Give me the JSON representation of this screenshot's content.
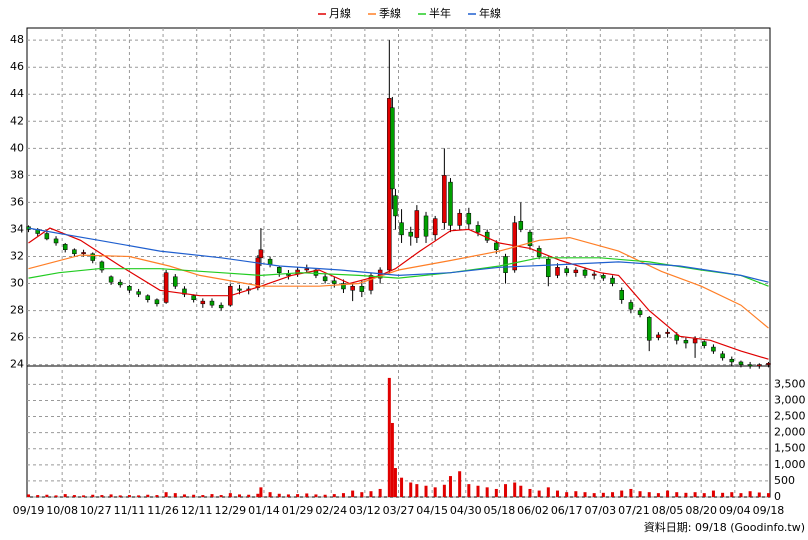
{
  "chart_data": {
    "type": "candlestick",
    "footer": "資料日期: 09/18 (Goodinfo.tw)",
    "xlim": [
      -0.5,
      242.5
    ],
    "xticks": [
      {
        "value": 0,
        "label": "09/19"
      },
      {
        "value": 11,
        "label": "10/08"
      },
      {
        "value": 22,
        "label": "10/27"
      },
      {
        "value": 33,
        "label": "11/11"
      },
      {
        "value": 44,
        "label": "11/26"
      },
      {
        "value": 55,
        "label": "12/11"
      },
      {
        "value": 66,
        "label": "12/29"
      },
      {
        "value": 77,
        "label": "01/14"
      },
      {
        "value": 88,
        "label": "01/29"
      },
      {
        "value": 99,
        "label": "02/24"
      },
      {
        "value": 110,
        "label": "03/12"
      },
      {
        "value": 121,
        "label": "03/27"
      },
      {
        "value": 132,
        "label": "04/15"
      },
      {
        "value": 143,
        "label": "04/30"
      },
      {
        "value": 154,
        "label": "05/18"
      },
      {
        "value": 165,
        "label": "06/02"
      },
      {
        "value": 176,
        "label": "06/17"
      },
      {
        "value": 187,
        "label": "07/03"
      },
      {
        "value": 198,
        "label": "07/21"
      },
      {
        "value": 209,
        "label": "08/05"
      },
      {
        "value": 220,
        "label": "08/20"
      },
      {
        "value": 231,
        "label": "09/04"
      },
      {
        "value": 242,
        "label": "09/18"
      }
    ],
    "ylim": [
      23.9,
      48.9
    ],
    "yticks": [
      24,
      26,
      28,
      30,
      32,
      34,
      36,
      38,
      40,
      42,
      44,
      46,
      48
    ],
    "y2lim": [
      0,
      4070
    ],
    "y2ticks": [
      0,
      500,
      {
        "value": 1000,
        "label": "1,000"
      },
      {
        "value": 1500,
        "label": "1,500"
      },
      {
        "value": 2000,
        "label": "2,000"
      },
      {
        "value": 2500,
        "label": "2,500"
      },
      {
        "value": 3000,
        "label": "3,000"
      },
      {
        "value": 3500,
        "label": "3,500"
      }
    ],
    "grid": true,
    "up_color": "#e00000",
    "down_color": "#00a000",
    "volume_color": "#e00000",
    "candles": {
      "x": [
        0,
        3,
        6,
        9,
        12,
        15,
        18,
        21,
        24,
        27,
        30,
        33,
        36,
        39,
        42,
        45,
        48,
        51,
        54,
        57,
        60,
        63,
        66,
        69,
        72,
        75,
        76,
        79,
        82,
        85,
        88,
        91,
        94,
        97,
        100,
        103,
        106,
        109,
        112,
        115,
        118,
        119,
        120,
        122,
        125,
        127,
        130,
        133,
        136,
        138,
        141,
        144,
        147,
        150,
        153,
        156,
        159,
        161,
        164,
        167,
        170,
        173,
        176,
        179,
        182,
        185,
        188,
        191,
        194,
        197,
        200,
        203,
        206,
        209,
        212,
        215,
        218,
        221,
        224,
        227,
        230,
        233,
        236,
        239,
        242
      ],
      "open": [
        34.2,
        34.0,
        33.7,
        33.3,
        32.9,
        32.5,
        32.2,
        32.2,
        31.6,
        30.5,
        30.1,
        29.8,
        29.4,
        29.1,
        28.8,
        28.6,
        30.5,
        29.6,
        29.1,
        28.5,
        28.7,
        28.4,
        28.4,
        29.6,
        29.5,
        29.7,
        31.9,
        31.8,
        31.2,
        30.7,
        30.7,
        31.0,
        31.0,
        30.5,
        30.2,
        30.0,
        29.5,
        29.8,
        29.5,
        30.4,
        31.0,
        43.0,
        36.5,
        34.5,
        33.8,
        33.4,
        35.0,
        33.6,
        34.5,
        37.5,
        34.3,
        35.2,
        34.3,
        33.8,
        33.0,
        32.0,
        31.0,
        34.6,
        33.8,
        32.6,
        31.8,
        30.6,
        31.1,
        30.8,
        31.0,
        30.6,
        30.6,
        30.4,
        29.5,
        28.6,
        28.0,
        27.5,
        26.0,
        26.3,
        26.2,
        25.8,
        25.6,
        25.7,
        25.3,
        24.8,
        24.4,
        24.2,
        24.0,
        23.9,
        24.0
      ],
      "high": [
        34.3,
        34.1,
        33.9,
        33.5,
        33.0,
        32.6,
        32.5,
        32.3,
        31.7,
        30.6,
        30.3,
        29.9,
        29.6,
        29.2,
        28.9,
        31.0,
        30.7,
        29.8,
        29.2,
        28.9,
        28.9,
        28.6,
        30.0,
        29.9,
        29.8,
        32.1,
        34.1,
        32.0,
        31.3,
        31.0,
        31.2,
        31.4,
        31.1,
        30.7,
        30.5,
        30.3,
        30.0,
        30.2,
        30.8,
        31.2,
        48.0,
        43.8,
        37.0,
        35.5,
        34.2,
        35.8,
        35.3,
        35.0,
        40.0,
        37.8,
        35.5,
        35.6,
        34.6,
        34.0,
        33.2,
        32.2,
        35.0,
        36.0,
        34.0,
        32.8,
        32.0,
        31.5,
        31.3,
        31.2,
        31.2,
        30.9,
        30.8,
        30.6,
        29.7,
        28.8,
        28.2,
        27.6,
        26.4,
        26.6,
        26.4,
        26.0,
        26.1,
        25.8,
        25.5,
        25.0,
        24.6,
        24.3,
        24.2,
        24.1,
        24.2
      ],
      "low": [
        33.8,
        33.5,
        33.2,
        32.8,
        32.3,
        32.0,
        32.0,
        31.5,
        30.8,
        29.9,
        29.7,
        29.3,
        29.0,
        28.6,
        28.3,
        28.5,
        29.6,
        29.0,
        28.6,
        28.2,
        28.2,
        28.0,
        28.3,
        29.2,
        29.2,
        29.5,
        31.3,
        31.2,
        30.5,
        30.3,
        30.5,
        30.8,
        30.4,
        30.0,
        29.7,
        29.3,
        28.7,
        29.0,
        29.2,
        30.0,
        30.8,
        35.5,
        34.0,
        33.0,
        32.8,
        33.0,
        33.0,
        33.2,
        34.0,
        33.8,
        34.0,
        34.0,
        33.5,
        33.0,
        32.2,
        30.0,
        30.8,
        33.8,
        32.5,
        31.8,
        29.8,
        30.4,
        30.6,
        30.5,
        30.4,
        30.3,
        30.2,
        29.8,
        28.5,
        27.8,
        27.5,
        25.0,
        25.8,
        26.0,
        25.5,
        25.2,
        24.5,
        25.2,
        24.8,
        24.3,
        23.9,
        23.8,
        23.7,
        23.7,
        23.8
      ],
      "close": [
        34.0,
        33.7,
        33.3,
        33.0,
        32.5,
        32.2,
        32.3,
        31.7,
        31.0,
        30.1,
        29.9,
        29.5,
        29.2,
        28.8,
        28.5,
        30.8,
        29.8,
        29.2,
        28.8,
        28.7,
        28.4,
        28.2,
        29.8,
        29.5,
        29.6,
        31.9,
        32.5,
        31.4,
        30.8,
        30.6,
        31.0,
        31.1,
        30.6,
        30.2,
        30.0,
        29.6,
        29.8,
        29.4,
        30.6,
        31.0,
        43.7,
        37.0,
        35.0,
        33.6,
        33.5,
        35.4,
        33.5,
        34.8,
        38.0,
        34.3,
        35.2,
        34.4,
        33.8,
        33.2,
        32.5,
        30.8,
        34.5,
        34.0,
        32.8,
        32.0,
        30.5,
        31.2,
        30.8,
        31.0,
        30.6,
        30.7,
        30.4,
        30.0,
        28.8,
        28.1,
        27.7,
        25.8,
        26.2,
        26.4,
        25.8,
        25.6,
        25.9,
        25.4,
        25.0,
        24.5,
        24.2,
        24.0,
        23.9,
        24.0,
        24.1
      ],
      "volume": [
        80,
        60,
        70,
        50,
        90,
        60,
        50,
        70,
        60,
        80,
        50,
        60,
        50,
        70,
        60,
        150,
        120,
        80,
        70,
        60,
        90,
        60,
        120,
        80,
        70,
        100,
        300,
        150,
        100,
        80,
        90,
        110,
        80,
        70,
        90,
        120,
        200,
        150,
        180,
        250,
        3700,
        2300,
        900,
        600,
        450,
        400,
        350,
        300,
        380,
        650,
        800,
        400,
        350,
        300,
        250,
        400,
        450,
        350,
        250,
        200,
        300,
        200,
        150,
        180,
        150,
        120,
        130,
        150,
        200,
        250,
        180,
        150,
        120,
        200,
        150,
        130,
        150,
        120,
        200,
        130,
        150,
        120,
        180,
        140,
        120
      ]
    },
    "series": [
      {
        "name": "月線",
        "color": "#e00000",
        "x": [
          0,
          7,
          17,
          30,
          43,
          56,
          66,
          76,
          86,
          95,
          105,
          115,
          120,
          128,
          138,
          144,
          154,
          164,
          174,
          187,
          193,
          203,
          213,
          223,
          233,
          242
        ],
        "values": [
          33.0,
          34.1,
          33.2,
          31.3,
          29.5,
          29.1,
          29.1,
          29.8,
          30.6,
          31.0,
          30.0,
          30.6,
          31.1,
          32.4,
          33.9,
          34.0,
          33.0,
          32.6,
          31.7,
          30.8,
          30.6,
          28.0,
          26.1,
          25.8,
          25.0,
          24.4
        ]
      },
      {
        "name": "季線",
        "color": "#ff7f27",
        "x": [
          0,
          17,
          33,
          46,
          56,
          76,
          95,
          108,
          121,
          138,
          154,
          167,
          177,
          193,
          207,
          220,
          233,
          242
        ],
        "values": [
          31.1,
          32.1,
          32.0,
          31.3,
          30.6,
          29.8,
          29.8,
          30.0,
          31.0,
          31.7,
          32.4,
          33.2,
          33.4,
          32.4,
          30.9,
          29.8,
          28.4,
          26.7
        ]
      },
      {
        "name": "半年",
        "color": "#22cc22",
        "x": [
          0,
          10,
          23,
          43,
          63,
          76,
          89,
          108,
          121,
          138,
          154,
          167,
          187,
          203,
          220,
          233,
          242
        ],
        "values": [
          30.4,
          30.8,
          31.1,
          31.1,
          30.8,
          30.6,
          30.8,
          30.6,
          30.4,
          30.8,
          31.3,
          31.9,
          31.9,
          31.6,
          31.0,
          30.6,
          29.8
        ]
      },
      {
        "name": "年線",
        "color": "#1f5fcf",
        "x": [
          0,
          23,
          43,
          63,
          82,
          102,
          121,
          138,
          154,
          174,
          193,
          213,
          233,
          242
        ],
        "values": [
          34.1,
          33.2,
          32.4,
          31.9,
          31.3,
          31.0,
          30.6,
          30.8,
          31.2,
          31.4,
          31.6,
          31.3,
          30.6,
          30.1
        ]
      }
    ]
  }
}
